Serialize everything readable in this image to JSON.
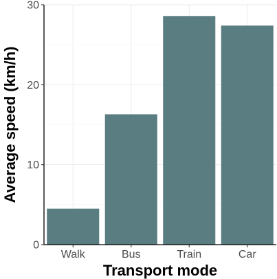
{
  "chart_data": {
    "type": "bar",
    "title": "",
    "xlabel": "Transport mode",
    "ylabel": "Average speed (km/h)",
    "categories": [
      "Walk",
      "Bus",
      "Train",
      "Car"
    ],
    "values": [
      4.5,
      16.3,
      28.6,
      27.4
    ],
    "ylim": [
      0,
      30
    ],
    "yticks": [
      0,
      10,
      20,
      30
    ],
    "bar_color": "#5a7d82",
    "grid": true,
    "legend": "none"
  }
}
